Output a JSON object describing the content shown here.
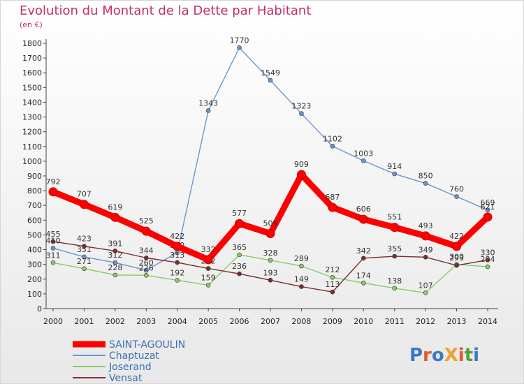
{
  "chart_data": {
    "type": "line",
    "title": "Evolution du Montant de la Dette par Habitant",
    "subtitle": "(en €)",
    "x": [
      "2000",
      "2001",
      "2002",
      "2003",
      "2004",
      "2005",
      "2006",
      "2007",
      "2008",
      "2009",
      "2010",
      "2011",
      "2012",
      "2013",
      "2014"
    ],
    "ylim": [
      0,
      1800
    ],
    "yticks": [
      0,
      100,
      200,
      300,
      400,
      500,
      600,
      700,
      800,
      900,
      1000,
      1100,
      1200,
      1300,
      1400,
      1500,
      1600,
      1700,
      1800
    ],
    "grid": false,
    "legend_position": "bottom-left",
    "series": [
      {
        "name": "SAINT-AGOULIN",
        "color": "#ff0000",
        "values": [
          792,
          707,
          619,
          525,
          422,
          332,
          577,
          509,
          909,
          687,
          606,
          551,
          493,
          422,
          621
        ]
      },
      {
        "name": "Chaptuzat",
        "color": "#6699cc",
        "values": [
          410,
          351,
          312,
          260,
          380,
          1343,
          1770,
          1549,
          1323,
          1102,
          1003,
          914,
          850,
          760,
          669
        ]
      },
      {
        "name": "Joserand",
        "color": "#88cc66",
        "values": [
          311,
          271,
          228,
          226,
          192,
          159,
          365,
          328,
          289,
          212,
          174,
          138,
          107,
          300,
          284
        ]
      },
      {
        "name": "Vensat",
        "color": "#7a2e2e",
        "values": [
          455,
          423,
          391,
          344,
          313,
          272,
          236,
          193,
          149,
          113,
          342,
          355,
          349,
          293,
          330
        ]
      }
    ]
  },
  "watermark": "ProXiti"
}
